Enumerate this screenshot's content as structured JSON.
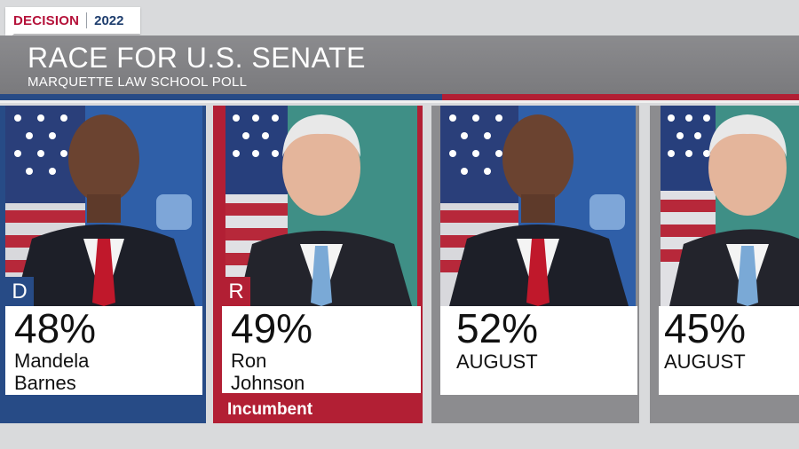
{
  "bug": {
    "word": "DECISION",
    "year": "2022"
  },
  "header": {
    "title": "RACE FOR U.S. SENATE",
    "subtitle": "MARQUETTE LAW SCHOOL POLL"
  },
  "colors": {
    "dem": "#274b86",
    "rep": "#b21f34",
    "gray": "#8c8c8f"
  },
  "cards": [
    {
      "party": "D",
      "pct": "48%",
      "name_line1": "Mandela",
      "name_line2": "Barnes",
      "value": 48
    },
    {
      "party": "R",
      "pct": "49%",
      "name_line1": "Ron",
      "name_line2": "Johnson",
      "footer": "Incumbent",
      "value": 49
    },
    {
      "pct": "52%",
      "label": "AUGUST",
      "value": 52
    },
    {
      "pct": "45%",
      "label": "AUGUST",
      "value": 45
    }
  ]
}
